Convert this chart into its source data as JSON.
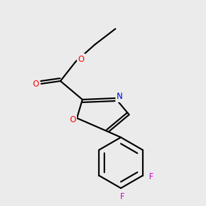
{
  "background_color": "#ebebeb",
  "bond_color": "#000000",
  "atom_colors": {
    "O": "#ff0000",
    "N": "#0000cd",
    "F": "#cc00cc",
    "C": "#000000"
  },
  "lw": 1.6,
  "fontsize": 8.5
}
